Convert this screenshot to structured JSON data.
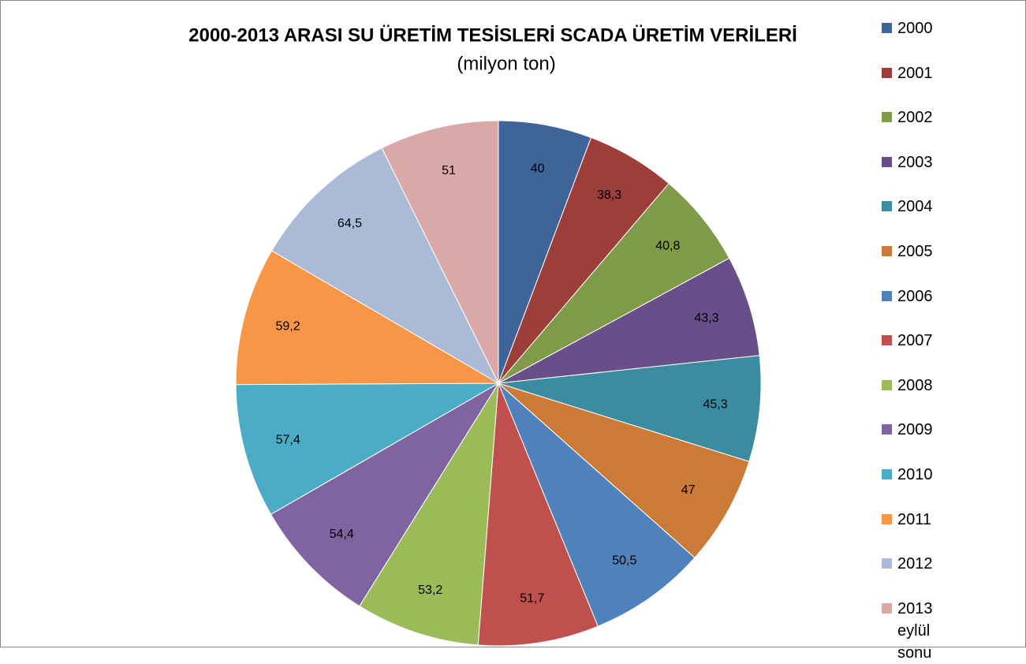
{
  "chart_data": {
    "type": "pie",
    "title": "2000-2013 ARASI SU ÜRETİM TESİSLERİ SCADA ÜRETİM VERİLERİ",
    "subtitle": "(milyon ton)",
    "categories": [
      "2000",
      "2001",
      "2002",
      "2003",
      "2004",
      "2005",
      "2006",
      "2007",
      "2008",
      "2009",
      "2010",
      "2011",
      "2012",
      "2013 eylül sonu"
    ],
    "values": [
      40,
      38.3,
      40.8,
      43.3,
      45.3,
      47,
      50.5,
      51.7,
      53.2,
      54.4,
      57.4,
      59.2,
      64.5,
      51
    ],
    "value_labels": [
      "40",
      "38,3",
      "40,8",
      "43,3",
      "45,3",
      "47",
      "50,5",
      "51,7",
      "53,2",
      "54,4",
      "57,4",
      "59,2",
      "64,5",
      "51"
    ],
    "colors": [
      "#3f6598",
      "#9e3e3b",
      "#7f9a48",
      "#694f8a",
      "#3b8ba1",
      "#cc7a37",
      "#4f81bd",
      "#c0504d",
      "#9bbb59",
      "#8064a2",
      "#4bacc6",
      "#f79646",
      "#aabad7",
      "#d9a9a8"
    ],
    "legend": "right"
  }
}
